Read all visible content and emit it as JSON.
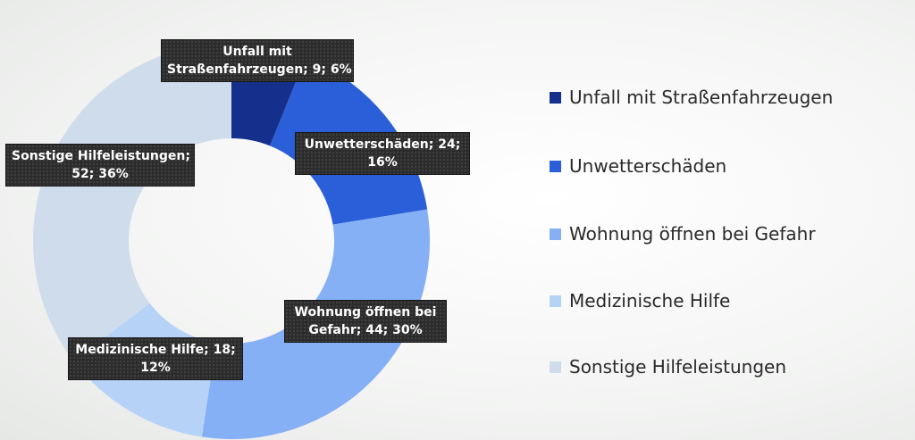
{
  "chart_data": {
    "type": "pie",
    "variant": "donut",
    "title": "",
    "categories": [
      "Unfall mit Straßenfahrzeugen",
      "Unwetterschäden",
      "Wohnung öffnen bei Gefahr",
      "Medizinische Hilfe",
      "Sonstige Hilfeleistungen"
    ],
    "values": [
      9,
      24,
      44,
      18,
      52
    ],
    "percentages": [
      "6%",
      "16%",
      "30%",
      "12%",
      "36%"
    ],
    "colors": [
      "#15308c",
      "#2a5fd9",
      "#86b0f5",
      "#b6d2f7",
      "#cfdcec"
    ],
    "legend_position": "right",
    "data_labels": [
      {
        "line1": "Unfall mit",
        "line2": "Straßenfahrzeugen; 9; 6%"
      },
      {
        "line1": "Unwetterschäden; 24;",
        "line2": "16%"
      },
      {
        "line1": "Wohnung öffnen bei",
        "line2": "Gefahr; 44; 30%"
      },
      {
        "line1": "Medizinische Hilfe; 18;",
        "line2": "12%"
      },
      {
        "line1": "Sonstige Hilfeleistungen;",
        "line2": "52; 36%"
      }
    ]
  }
}
